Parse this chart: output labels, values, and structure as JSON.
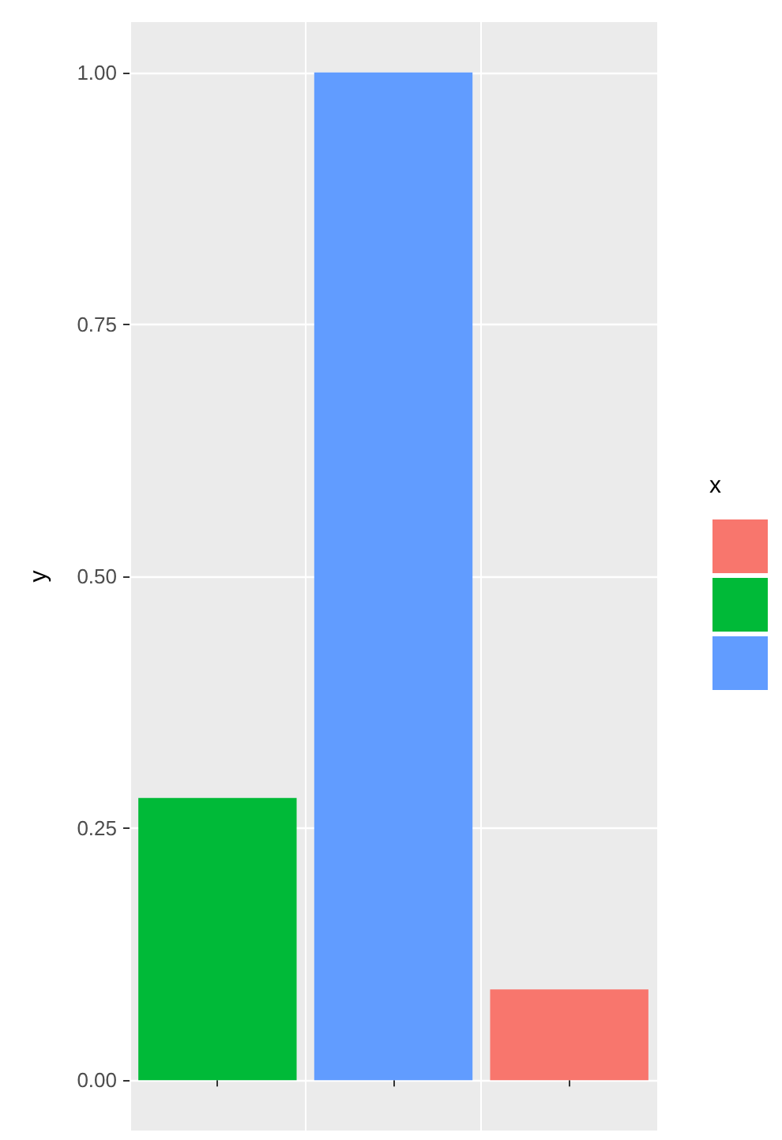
{
  "chart_data": {
    "type": "bar",
    "ylabel": "y",
    "legend_title": "x",
    "categories": [
      null,
      null,
      null
    ],
    "series": [
      {
        "color": "#f8766d",
        "values": [
          null,
          null,
          0.09
        ]
      },
      {
        "color": "#00ba38",
        "values": [
          0.28,
          null,
          null
        ]
      },
      {
        "color": "#619cff",
        "values": [
          null,
          1.0,
          null
        ]
      }
    ],
    "stacked": true,
    "ylim": [
      -0.05,
      1.05
    ],
    "yticks": [
      {
        "value": 0,
        "label": "0.00"
      },
      0.25,
      {
        "value": 0.5,
        "label": "0.50"
      },
      0.75,
      {
        "value": 1,
        "label": "1.00"
      }
    ],
    "tick_labels": "y",
    "grid": true
  }
}
